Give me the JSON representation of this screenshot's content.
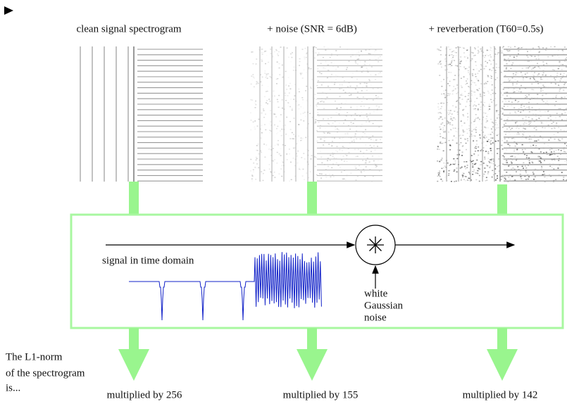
{
  "columns": [
    {
      "title": "clean signal spectrogram",
      "result": "multiplied by 256"
    },
    {
      "title": "+ noise (SNR = 6dB)",
      "result": "multiplied by 155"
    },
    {
      "title": "+ reverberation (T60=0.5s)",
      "result": "multiplied by 142"
    }
  ],
  "box": {
    "signal_label": "signal in time domain",
    "noise_label": [
      "white",
      "Gaussian",
      "noise"
    ]
  },
  "footer": [
    "The L1-norm",
    "of the spectrogram",
    "is..."
  ]
}
